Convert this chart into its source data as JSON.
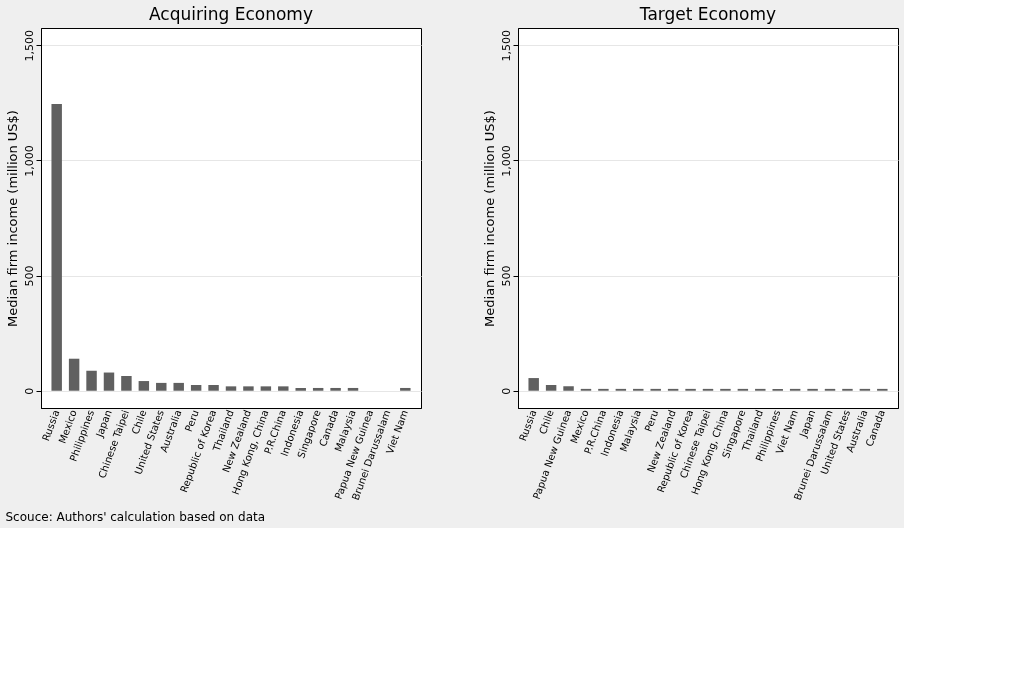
{
  "chart_data": [
    {
      "type": "bar",
      "title": "Acquiring Economy",
      "ylabel": "Median firm income (million US$)",
      "categories": [
        "Russia",
        "Mexico",
        "Philippines",
        "Japan",
        "Chinese Taipei",
        "Chile",
        "United States",
        "Australia",
        "Peru",
        "Republic of Korea",
        "Thailand",
        "New Zealand",
        "Hong Kong, China",
        "P.R.China",
        "Indonesia",
        "Singapore",
        "Canada",
        "Malaysia",
        "Papua New Guinea",
        "Brunei Darussalam",
        "Viet Nam"
      ],
      "values": [
        1245,
        139,
        87,
        79,
        64,
        42,
        34,
        34,
        25,
        25,
        19,
        19,
        19,
        19,
        12,
        12,
        12,
        12,
        null,
        null,
        12
      ],
      "color": "#606060",
      "ylim": [
        -75,
        1575
      ],
      "yticks": [
        0,
        500,
        {
          "value": 1000,
          "label": "1,000"
        },
        {
          "value": 1500,
          "label": "1,500"
        }
      ],
      "grid": "y",
      "annotations": [
        "Scouce: Authors' calculation based on data"
      ]
    },
    {
      "type": "bar",
      "title": "Target Economy",
      "ylabel": "Median firm income (million US$)",
      "categories": [
        "Russia",
        "Chile",
        "Papua New Guinea",
        "Mexico",
        "P.R.China",
        "Indonesia",
        "Malaysia",
        "Peru",
        "New Zealand",
        "Republic of Korea",
        "Chinese Taipei",
        "Hong Kong, China",
        "Singapore",
        "Thailand",
        "Philippines",
        "Viet Nam",
        "Japan",
        "Brunei Darussalam",
        "United States",
        "Australia",
        "Canada"
      ],
      "values": [
        55,
        25,
        19,
        8,
        8,
        8,
        8,
        8,
        8,
        8,
        8,
        8,
        8,
        8,
        8,
        8,
        8,
        8,
        8,
        8,
        8
      ],
      "color": "#606060",
      "ylim": [
        -75,
        1575
      ],
      "yticks": [
        0,
        500,
        {
          "value": 1000,
          "label": "1,000"
        },
        {
          "value": 1500,
          "label": "1,500"
        }
      ],
      "grid": "y"
    }
  ]
}
